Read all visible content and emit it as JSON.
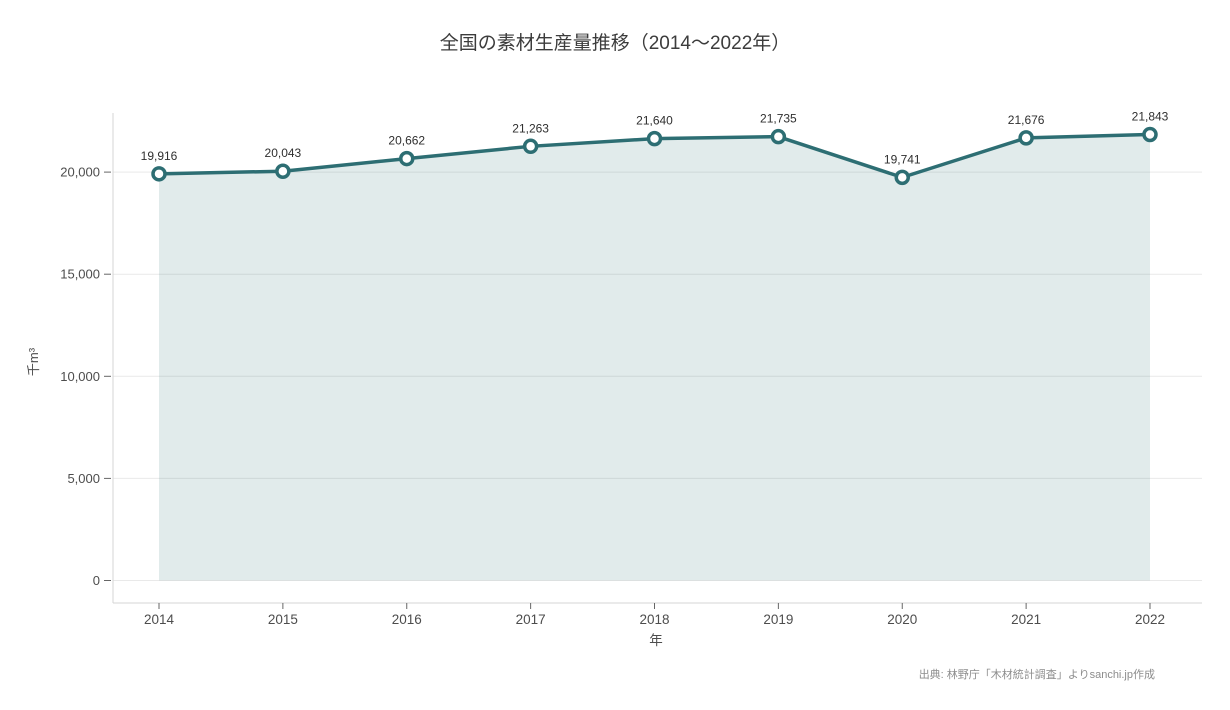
{
  "page": {
    "title": "全国の素材生産量推移（2014～2022年）",
    "source_note": "出典: 林野庁「木材統計調査」よりsanchi.jp作成"
  },
  "chart_data": {
    "type": "area",
    "title": "全国の素材生産量推移（2014～2022年）",
    "categories": [
      "2014",
      "2015",
      "2016",
      "2017",
      "2018",
      "2019",
      "2020",
      "2021",
      "2022"
    ],
    "values": [
      19916,
      20043,
      20662,
      21263,
      21640,
      21735,
      19741,
      21676,
      21843
    ],
    "value_labels": [
      "19,916",
      "20,043",
      "20,662",
      "21,263",
      "21,640",
      "21,735",
      "19,741",
      "21,676",
      "21,843"
    ],
    "xlabel": "年",
    "ylabel": "千m³",
    "ylim": [
      0,
      22900
    ],
    "yticks": [
      0,
      5000,
      10000,
      15000,
      20000
    ],
    "ytick_labels": [
      "0",
      "5,000",
      "10,000",
      "15,000",
      "20,000"
    ],
    "grid": true,
    "legend": false,
    "colors": {
      "line": "#2d6e73",
      "area_fill_opacity": 0.14,
      "marker_fill": "#ffffff",
      "gridline": "#e9e9e9",
      "axis_line": "#d4d4d4",
      "tick": "#666666",
      "tick_label": "#4d4d4d",
      "data_label": "#2f2f2f",
      "title": "#3c3c3c",
      "source": "#8c8c8c"
    }
  }
}
